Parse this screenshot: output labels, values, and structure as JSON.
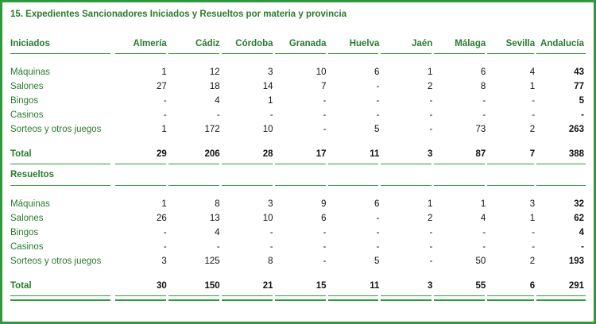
{
  "title": "15. Expedientes Sancionadores Iniciados y Resueltos por materia y provincia",
  "columns": [
    "Almería",
    "Cádiz",
    "Córdoba",
    "Granada",
    "Huelva",
    "Jaén",
    "Málaga",
    "Sevilla",
    "Andalucía"
  ],
  "sections": [
    {
      "header": "Iniciados",
      "rows": [
        {
          "label": "Máquinas",
          "values": [
            "1",
            "12",
            "3",
            "10",
            "6",
            "1",
            "6",
            "4",
            "43"
          ]
        },
        {
          "label": "Salones",
          "values": [
            "27",
            "18",
            "14",
            "7",
            "-",
            "2",
            "8",
            "1",
            "77"
          ]
        },
        {
          "label": "Bingos",
          "values": [
            "-",
            "4",
            "1",
            "-",
            "-",
            "-",
            "-",
            "-",
            "5"
          ]
        },
        {
          "label": "Casinos",
          "values": [
            "-",
            "-",
            "-",
            "-",
            "-",
            "-",
            "-",
            "-",
            "-"
          ]
        },
        {
          "label": "Sorteos y otros juegos",
          "values": [
            "1",
            "172",
            "10",
            "-",
            "5",
            "-",
            "73",
            "2",
            "263"
          ]
        }
      ],
      "total": {
        "label": "Total",
        "values": [
          "29",
          "206",
          "28",
          "17",
          "11",
          "3",
          "87",
          "7",
          "388"
        ]
      }
    },
    {
      "header": "Resueltos",
      "rows": [
        {
          "label": "Máquinas",
          "values": [
            "1",
            "8",
            "3",
            "9",
            "6",
            "1",
            "1",
            "3",
            "32"
          ]
        },
        {
          "label": "Salones",
          "values": [
            "26",
            "13",
            "10",
            "6",
            "-",
            "2",
            "4",
            "1",
            "62"
          ]
        },
        {
          "label": "Bingos",
          "values": [
            "-",
            "4",
            "-",
            "-",
            "-",
            "-",
            "-",
            "-",
            "4"
          ]
        },
        {
          "label": "Casinos",
          "values": [
            "-",
            "-",
            "-",
            "-",
            "-",
            "-",
            "-",
            "-",
            "-"
          ]
        },
        {
          "label": "Sorteos y otros juegos",
          "values": [
            "3",
            "125",
            "8",
            "-",
            "5",
            "-",
            "50",
            "2",
            "193"
          ]
        }
      ],
      "total": {
        "label": "Total",
        "values": [
          "30",
          "150",
          "21",
          "15",
          "11",
          "3",
          "55",
          "6",
          "291"
        ]
      }
    }
  ],
  "colors": {
    "accent": "#2e9a3c",
    "label_text": "#2a7a2e"
  }
}
